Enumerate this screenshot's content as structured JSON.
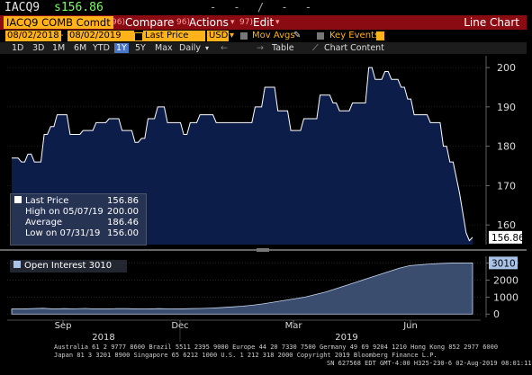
{
  "header": {
    "ticker": "IACQ9",
    "price": "s156.86",
    "dashes": "- - / - -"
  },
  "toolbar": {
    "security": "IACQ9 COMB Comdt",
    "compare_num": "96)",
    "compare_label": "Compare",
    "actions_num": "96)",
    "actions_label": "Actions",
    "edit_num": "97)",
    "edit_label": "Edit",
    "view_title": "Line Chart"
  },
  "controls": {
    "start_date": "08/02/2018",
    "end_date": "08/02/2019",
    "price_field": "Last Price",
    "currency": "USD",
    "mov_avgs": "Mov Avgs",
    "key_events": "Key Events"
  },
  "periods": {
    "items": [
      "1D",
      "3D",
      "1M",
      "6M",
      "YTD",
      "1Y",
      "5Y",
      "Max"
    ],
    "selected": "1Y",
    "frequency": "Daily",
    "table": "Table",
    "chart_content": "Chart Content"
  },
  "legend": {
    "last_price_label": "Last Price",
    "last_price_value": "156.86",
    "high_label": "High on 05/07/19",
    "high_value": "200.00",
    "average_label": "Average",
    "average_value": "186.46",
    "low_label": "Low on 07/31/19",
    "low_value": "156.00",
    "open_interest_label": "Open Interest",
    "open_interest_value": "3010"
  },
  "chart_data": [
    {
      "type": "line",
      "series": [
        {
          "name": "Last Price",
          "values": [
            177,
            177,
            177,
            176,
            176,
            178,
            178,
            176,
            176,
            176,
            183,
            183,
            185,
            185,
            188,
            188,
            188,
            188,
            183,
            183,
            183,
            183,
            184,
            184,
            184,
            184,
            186,
            186,
            186,
            186,
            187,
            187,
            187,
            187,
            184,
            184,
            184,
            184,
            181,
            181,
            182,
            182,
            187,
            187,
            187,
            190,
            190,
            190,
            186,
            186,
            186,
            186,
            186,
            183,
            183,
            186,
            186,
            186,
            188,
            188,
            188,
            188,
            188,
            186,
            186,
            186,
            186,
            186,
            186,
            186,
            186,
            186,
            186,
            186,
            186,
            190,
            190,
            190,
            195,
            195,
            195,
            195,
            189,
            189,
            189,
            189,
            184,
            184,
            184,
            184,
            187,
            187,
            187,
            187,
            187,
            193,
            193,
            193,
            193,
            191,
            191,
            189,
            189,
            189,
            189,
            191,
            191,
            191,
            191,
            191,
            200,
            200,
            197,
            197,
            197,
            199,
            199,
            197,
            197,
            197,
            195,
            195,
            192,
            192,
            188,
            188,
            188,
            188,
            188,
            186,
            186,
            186,
            186,
            180,
            180,
            176,
            176,
            172,
            168,
            163,
            158,
            156,
            156.86
          ]
        }
      ],
      "yticks": [
        160,
        170,
        180,
        190,
        200
      ],
      "ylim": [
        155,
        203
      ],
      "last_value_tag": "156.86",
      "x_month_labels": [
        "Sep",
        "Dec",
        "Mar",
        "Jun"
      ],
      "x_year_labels": [
        "2018",
        "2019"
      ]
    },
    {
      "type": "area",
      "series": [
        {
          "name": "Open Interest",
          "values": [
            300,
            300,
            320,
            340,
            300,
            320,
            310,
            330,
            300,
            300,
            320,
            320,
            300,
            300,
            320,
            310,
            300,
            320,
            330,
            350,
            380,
            420,
            460,
            520,
            600,
            700,
            800,
            900,
            1000,
            1150,
            1300,
            1500,
            1700,
            1900,
            2100,
            2300,
            2500,
            2700,
            2850,
            2900,
            2950,
            2980,
            3000,
            3000,
            3010
          ]
        }
      ],
      "yticks": [
        0,
        1000,
        2000,
        3000
      ],
      "ylim": [
        -200,
        3400
      ],
      "last_value_tag": "3010"
    }
  ],
  "footer": {
    "line1": "Australia 61 2 9777 8600 Brazil 5511 2395 9000 Europe 44 20 7330 7500 Germany 49 69 9204 1210 Hong Kong 852 2977 6000",
    "line2": "Japan 81 3 3201 8900         Singapore 65 6212 1000          U.S. 1 212 318 2000          Copyright 2019 Bloomberg Finance L.P.",
    "line3": "SN 627568 EDT  GMT-4:00 H325-230-6 02-Aug-2019 08:01:11"
  }
}
